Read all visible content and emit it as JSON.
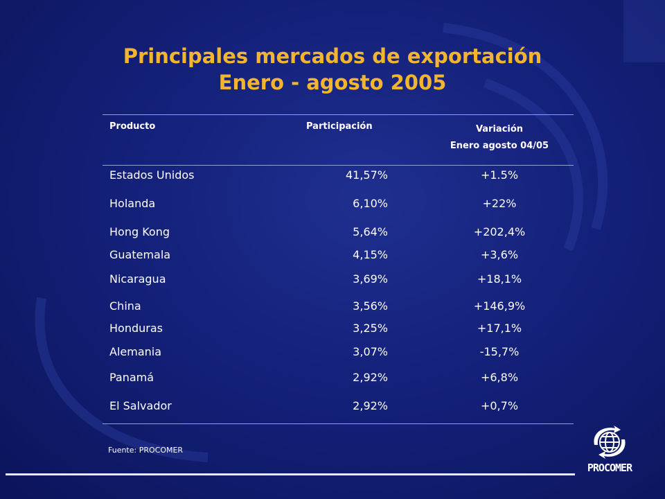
{
  "title": {
    "line1": "Principales mercados de exportación",
    "line2": "Enero - agosto 2005"
  },
  "table": {
    "headers": {
      "producto": "Producto",
      "participacion": "Participación",
      "variacion_line1": "Variación",
      "variacion_line2": "Enero agosto 04/05"
    },
    "rows": [
      {
        "name": "Estados Unidos",
        "share": "41,57%",
        "change": "+1.5%"
      },
      {
        "name": "Holanda",
        "share": "6,10%",
        "change": "+22%"
      },
      {
        "name": "Hong Kong",
        "share": "5,64%",
        "change": "+202,4%"
      },
      {
        "name": "Guatemala",
        "share": "4,15%",
        "change": "+3,6%"
      },
      {
        "name": "Nicaragua",
        "share": "3,69%",
        "change": "+18,1%"
      },
      {
        "name": "China",
        "share": "3,56%",
        "change": "+146,9%"
      },
      {
        "name": "Honduras",
        "share": "3,25%",
        "change": "+17,1%"
      },
      {
        "name": "Alemania",
        "share": "3,07%",
        "change": "-15,7%"
      },
      {
        "name": "Panamá",
        "share": "2,92%",
        "change": "+6,8%"
      },
      {
        "name": "El Salvador",
        "share": "2,92%",
        "change": "+0,7%"
      }
    ]
  },
  "source": "Fuente: PROCOMER",
  "logo": {
    "text": "PROCOMER",
    "icon": "globe-arrows-icon"
  },
  "colors": {
    "title": "#f4b52e",
    "background": "#14217a",
    "text": "#ffffff"
  }
}
